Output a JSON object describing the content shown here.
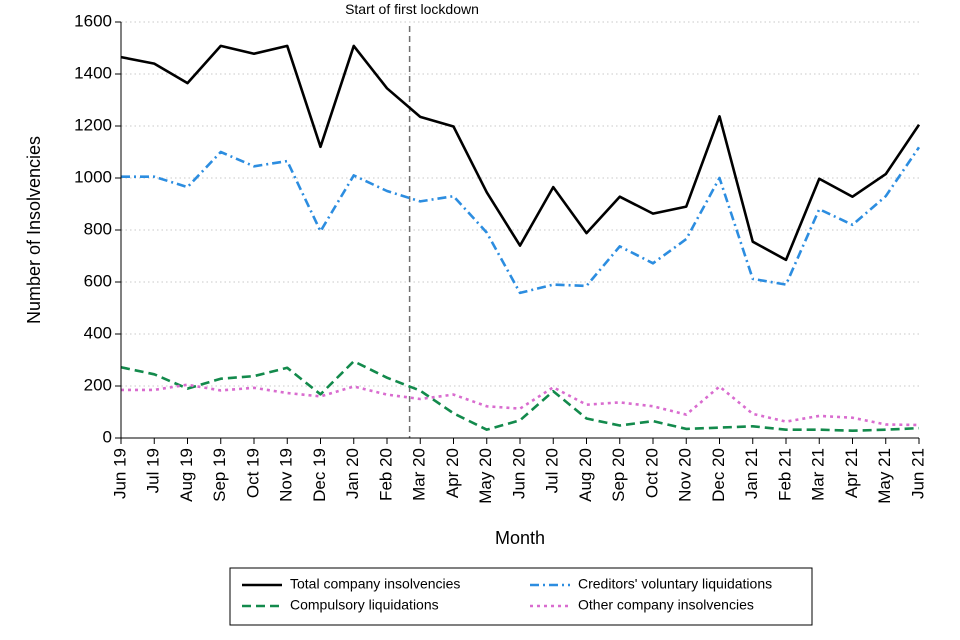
{
  "chart_data": {
    "type": "line",
    "xlabel": "Month",
    "ylabel": "Number of Insolvencies",
    "ylim": [
      0,
      1600
    ],
    "yticks": [
      0,
      200,
      400,
      600,
      800,
      1000,
      1200,
      1400,
      1600
    ],
    "grid": "horizontal dotted",
    "legend_position": "bottom",
    "categories": [
      "Jun 19",
      "Jul 19",
      "Aug 19",
      "Sep 19",
      "Oct 19",
      "Nov 19",
      "Dec 19",
      "Jan 20",
      "Feb 20",
      "Mar 20",
      "Apr 20",
      "May 20",
      "Jun 20",
      "Jul 20",
      "Aug 20",
      "Sep 20",
      "Oct 20",
      "Nov 20",
      "Dec 20",
      "Jan 21",
      "Feb 21",
      "Mar 21",
      "Apr 21",
      "May 21",
      "Jun 21"
    ],
    "annotation": {
      "text": "Start of first lockdown",
      "x_position": "between Feb 20 and Mar 20"
    },
    "series": [
      {
        "name": "Total company insolvencies",
        "color": "#000000",
        "style": "solid",
        "values": [
          1465,
          1440,
          1365,
          1508,
          1478,
          1508,
          1120,
          1508,
          1345,
          1235,
          1198,
          945,
          740,
          965,
          788,
          928,
          863,
          890,
          1237,
          755,
          685,
          997,
          928,
          1015,
          1205
        ]
      },
      {
        "name": "Creditors' voluntary liquidations",
        "color": "#2c8de0",
        "style": "dashdot",
        "values": [
          1005,
          1005,
          965,
          1100,
          1045,
          1065,
          795,
          1010,
          950,
          910,
          930,
          790,
          558,
          590,
          585,
          737,
          672,
          765,
          1000,
          612,
          590,
          880,
          820,
          930,
          1118
        ]
      },
      {
        "name": "Compulsory liquidations",
        "color": "#138a4c",
        "style": "dashed",
        "values": [
          272,
          245,
          190,
          228,
          238,
          270,
          168,
          295,
          232,
          182,
          95,
          32,
          68,
          180,
          75,
          48,
          65,
          35,
          40,
          45,
          32,
          32,
          28,
          32,
          38
        ]
      },
      {
        "name": "Other company insolvencies",
        "color": "#d96ccf",
        "style": "dotted",
        "values": [
          185,
          185,
          205,
          183,
          193,
          173,
          160,
          198,
          167,
          150,
          167,
          122,
          113,
          195,
          128,
          137,
          122,
          90,
          198,
          93,
          63,
          85,
          78,
          52,
          50
        ]
      }
    ]
  }
}
